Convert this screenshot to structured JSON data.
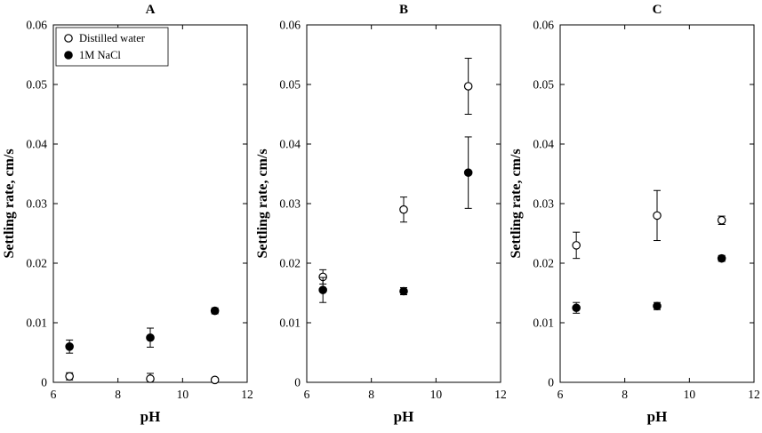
{
  "figure": {
    "background_color": "#ffffff",
    "axis_color": "#000000",
    "marker_open_fill": "#ffffff",
    "marker_filled_fill": "#000000"
  },
  "chart_data": [
    {
      "type": "scatter",
      "title": "A",
      "xlabel": "pH",
      "ylabel": "Settling rate, cm/s",
      "xlim": [
        6,
        12
      ],
      "ylim": [
        0,
        0.06
      ],
      "xticks": [
        6,
        8,
        10,
        12
      ],
      "yticks": [
        0,
        0.01,
        0.02,
        0.03,
        0.04,
        0.05,
        0.06
      ],
      "grid": false,
      "legend": {
        "show": true,
        "position": "top-left",
        "entries": [
          "Distilled water",
          "1M NaCl"
        ]
      },
      "series": [
        {
          "name": "Distilled water",
          "marker": "open-circle",
          "x": [
            6.5,
            9,
            11
          ],
          "y": [
            0.001,
            0.0006,
            0.0004
          ],
          "yerr": [
            0.0006,
            0.0009,
            0.0003
          ]
        },
        {
          "name": "1M NaCl",
          "marker": "filled-circle",
          "x": [
            6.5,
            9,
            11
          ],
          "y": [
            0.006,
            0.0075,
            0.012
          ],
          "yerr": [
            0.0011,
            0.0016,
            0.0005
          ]
        }
      ]
    },
    {
      "type": "scatter",
      "title": "B",
      "xlabel": "pH",
      "ylabel": "Settling rate, cm/s",
      "xlim": [
        6,
        12
      ],
      "ylim": [
        0,
        0.06
      ],
      "xticks": [
        6,
        8,
        10,
        12
      ],
      "yticks": [
        0,
        0.01,
        0.02,
        0.03,
        0.04,
        0.05,
        0.06
      ],
      "grid": false,
      "legend": {
        "show": false,
        "position": "",
        "entries": []
      },
      "series": [
        {
          "name": "Distilled water",
          "marker": "open-circle",
          "x": [
            6.5,
            9,
            11
          ],
          "y": [
            0.0177,
            0.029,
            0.0497
          ],
          "yerr": [
            0.0012,
            0.0021,
            0.0047
          ]
        },
        {
          "name": "1M NaCl",
          "marker": "filled-circle",
          "x": [
            6.5,
            9,
            11
          ],
          "y": [
            0.0155,
            0.0153,
            0.0352
          ],
          "yerr": [
            0.0021,
            0.0006,
            0.006
          ]
        }
      ]
    },
    {
      "type": "scatter",
      "title": "C",
      "xlabel": "pH",
      "ylabel": "Settling rate, cm/s",
      "xlim": [
        6,
        12
      ],
      "ylim": [
        0,
        0.06
      ],
      "xticks": [
        6,
        8,
        10,
        12
      ],
      "yticks": [
        0,
        0.01,
        0.02,
        0.03,
        0.04,
        0.05,
        0.06
      ],
      "grid": false,
      "legend": {
        "show": false,
        "position": "",
        "entries": []
      },
      "series": [
        {
          "name": "Distilled water",
          "marker": "open-circle",
          "x": [
            6.5,
            9,
            11
          ],
          "y": [
            0.023,
            0.028,
            0.0272
          ],
          "yerr": [
            0.0022,
            0.0042,
            0.0007
          ]
        },
        {
          "name": "1M NaCl",
          "marker": "filled-circle",
          "x": [
            6.5,
            9,
            11
          ],
          "y": [
            0.0125,
            0.0128,
            0.0208
          ],
          "yerr": [
            0.0009,
            0.0006,
            0.0005
          ]
        }
      ]
    }
  ]
}
